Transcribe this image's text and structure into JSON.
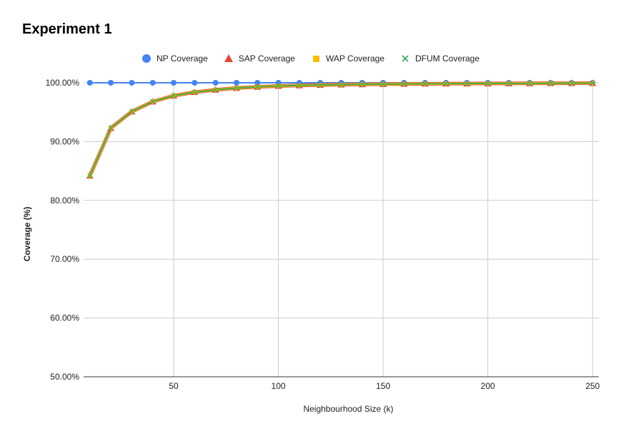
{
  "chart_data": {
    "type": "line",
    "title": "Experiment 1",
    "xlabel": "Neighbourhood Size (k)",
    "ylabel": "Coverage (%)",
    "x": [
      10,
      20,
      30,
      40,
      50,
      60,
      70,
      80,
      90,
      100,
      110,
      120,
      130,
      140,
      150,
      160,
      170,
      180,
      190,
      200,
      210,
      220,
      230,
      240,
      250
    ],
    "xlim": [
      7,
      253
    ],
    "ylim": [
      50,
      100
    ],
    "x_ticks": [
      50,
      100,
      150,
      200,
      250
    ],
    "y_ticks": [
      50,
      60,
      70,
      80,
      90,
      100
    ],
    "y_tick_labels": [
      "50.00%",
      "60.00%",
      "70.00%",
      "80.00%",
      "90.00%",
      "100.00%"
    ],
    "grid": true,
    "legend_position": "top",
    "series": [
      {
        "name": "NP Coverage",
        "color": "#4285F4",
        "marker": "circle",
        "values": [
          100,
          100,
          100,
          100,
          100,
          100,
          100,
          100,
          100,
          100,
          100,
          100,
          100,
          100,
          100,
          100,
          100,
          100,
          100,
          100,
          100,
          100,
          100,
          100,
          100
        ]
      },
      {
        "name": "SAP Coverage",
        "color": "#EA4335",
        "marker": "triangle",
        "values": [
          84.2,
          92.3,
          95.1,
          96.8,
          97.8,
          98.4,
          98.8,
          99.1,
          99.3,
          99.45,
          99.55,
          99.62,
          99.68,
          99.73,
          99.77,
          99.8,
          99.83,
          99.85,
          99.87,
          99.88,
          99.9,
          99.91,
          99.92,
          99.93,
          99.94
        ]
      },
      {
        "name": "WAP Coverage",
        "color": "#FBBC04",
        "marker": "square",
        "values": [
          84.2,
          92.3,
          95.1,
          96.8,
          97.8,
          98.4,
          98.8,
          99.1,
          99.3,
          99.45,
          99.55,
          99.62,
          99.68,
          99.73,
          99.77,
          99.8,
          99.83,
          99.85,
          99.87,
          99.88,
          99.9,
          99.91,
          99.92,
          99.93,
          99.94
        ]
      },
      {
        "name": "DFUM Coverage",
        "color": "#34A853",
        "marker": "cross",
        "values": [
          84.2,
          92.3,
          95.1,
          96.8,
          97.8,
          98.4,
          98.8,
          99.1,
          99.3,
          99.45,
          99.55,
          99.62,
          99.68,
          99.73,
          99.77,
          99.8,
          99.83,
          99.85,
          99.87,
          99.88,
          99.9,
          99.91,
          99.92,
          99.93,
          99.94
        ]
      }
    ]
  }
}
